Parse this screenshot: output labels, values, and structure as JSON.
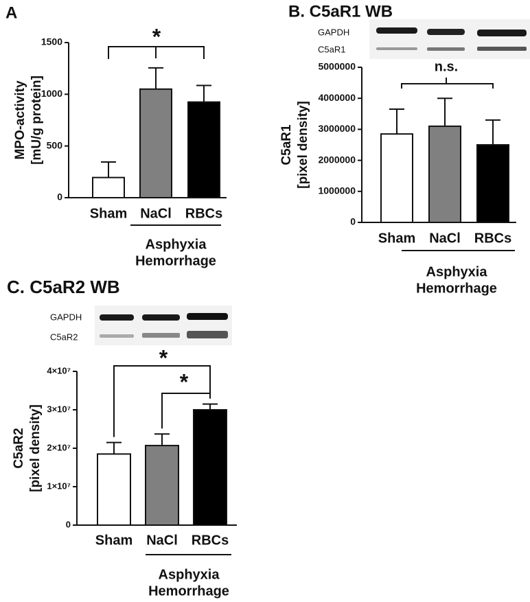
{
  "chart_data": [
    {
      "type": "bar",
      "title": "A",
      "y_label": [
        "MPO-activity",
        "[mU/g protein]"
      ],
      "categories": [
        "Sham",
        "NaCl",
        "RBCs"
      ],
      "values": [
        195,
        1050,
        925
      ],
      "errors": [
        150,
        205,
        160
      ],
      "colors": [
        "#ffffff",
        "#808080",
        "#000000"
      ],
      "ylim": [
        0,
        1500
      ],
      "yticks": [
        0,
        500,
        1000,
        1500
      ],
      "group_label": [
        "Asphyxia",
        "Hemorrhage"
      ],
      "annotations": [
        "*"
      ]
    },
    {
      "type": "bar",
      "title": "B. C5aR1 WB",
      "blot_labels": [
        "GAPDH",
        "C5aR1"
      ],
      "y_label": [
        "C5aR1",
        "[pixel density]"
      ],
      "categories": [
        "Sham",
        "NaCl",
        "RBCs"
      ],
      "values": [
        2850000,
        3100000,
        2500000
      ],
      "errors": [
        800000,
        900000,
        800000
      ],
      "colors": [
        "#ffffff",
        "#808080",
        "#000000"
      ],
      "ylim": [
        0,
        5000000
      ],
      "yticks": [
        0,
        1000000,
        2000000,
        3000000,
        4000000,
        5000000
      ],
      "group_label": [
        "Asphyxia",
        "Hemorrhage"
      ],
      "annotations": [
        "n.s."
      ]
    },
    {
      "type": "bar",
      "title": "C. C5aR2 WB",
      "blot_labels": [
        "GAPDH",
        "C5aR2"
      ],
      "y_label": [
        "C5aR2",
        "[pixel density]"
      ],
      "categories": [
        "Sham",
        "NaCl",
        "RBCs"
      ],
      "values": [
        18500000,
        20700000,
        30000000
      ],
      "errors": [
        3000000,
        3000000,
        1500000
      ],
      "colors": [
        "#ffffff",
        "#808080",
        "#000000"
      ],
      "ylim": [
        0,
        40000000
      ],
      "yticks": [
        0,
        {
          "value": 10000000,
          "label": "1×10⁷"
        },
        {
          "value": 20000000,
          "label": "2×10⁷"
        },
        {
          "value": 30000000,
          "label": "3×10⁷"
        },
        {
          "value": 40000000,
          "label": "4×10⁷"
        }
      ],
      "group_label": [
        "Asphyxia",
        "Hemorrhage"
      ],
      "annotations": [
        "*",
        "*"
      ]
    }
  ]
}
